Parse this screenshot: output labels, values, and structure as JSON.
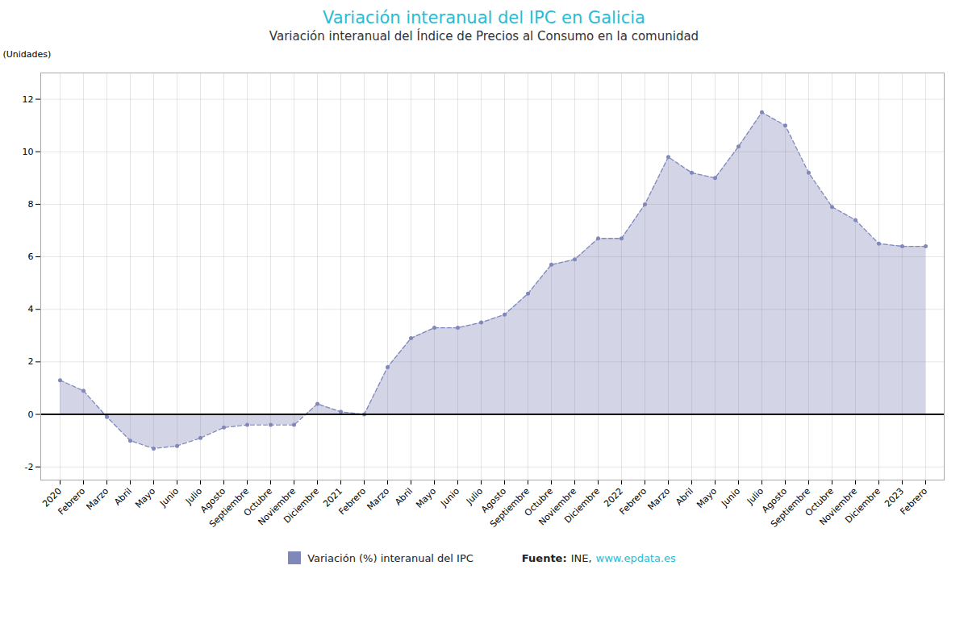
{
  "chart_data": {
    "type": "area",
    "title": "Variación interanual del IPC en Galicia",
    "subtitle": "Variación interanual del Índice de Precios al Consumo en la comunidad",
    "y_label": "(Unidades)",
    "annotations": [
      "Fuente:",
      "INE,",
      "www.epdata.es"
    ],
    "categories": [
      "2020",
      "Febrero",
      "Marzo",
      "Abril",
      "Mayo",
      "Junio",
      "Julio",
      "Agosto",
      "Septiembre",
      "Octubre",
      "Noviembre",
      "Diciembre",
      "2021",
      "Febrero",
      "Marzo",
      "Abril",
      "Mayo",
      "Junio",
      "Julio",
      "Agosto",
      "Septiembre",
      "Octubre",
      "Noviembre",
      "Diciembre",
      "2022",
      "Febrero",
      "Marzo",
      "Abril",
      "Mayo",
      "Junio",
      "Julio",
      "Agosto",
      "Septiembre",
      "Octubre",
      "Noviembre",
      "Diciembre",
      "2023",
      "Febrero"
    ],
    "series": [
      {
        "name": "Variación (%) interanual del IPC",
        "color": "#8088bb",
        "marker": "circle",
        "line_style": "dashed",
        "values": [
          1.3,
          0.9,
          -0.1,
          -1.0,
          -1.3,
          -1.2,
          -0.9,
          -0.5,
          -0.4,
          -0.4,
          -0.4,
          0.4,
          0.1,
          0.0,
          1.8,
          2.9,
          3.3,
          3.3,
          3.5,
          3.8,
          4.6,
          5.7,
          5.9,
          6.7,
          6.7,
          8.0,
          9.8,
          9.2,
          9.0,
          10.2,
          11.5,
          11.0,
          9.2,
          7.9,
          7.4,
          6.5,
          6.4,
          6.4
        ]
      }
    ],
    "ylim": [
      -2.5,
      13.0
    ],
    "yticks": [
      -2,
      0,
      2,
      4,
      6,
      8,
      10,
      12
    ],
    "grid": true,
    "legend": "bottom"
  }
}
